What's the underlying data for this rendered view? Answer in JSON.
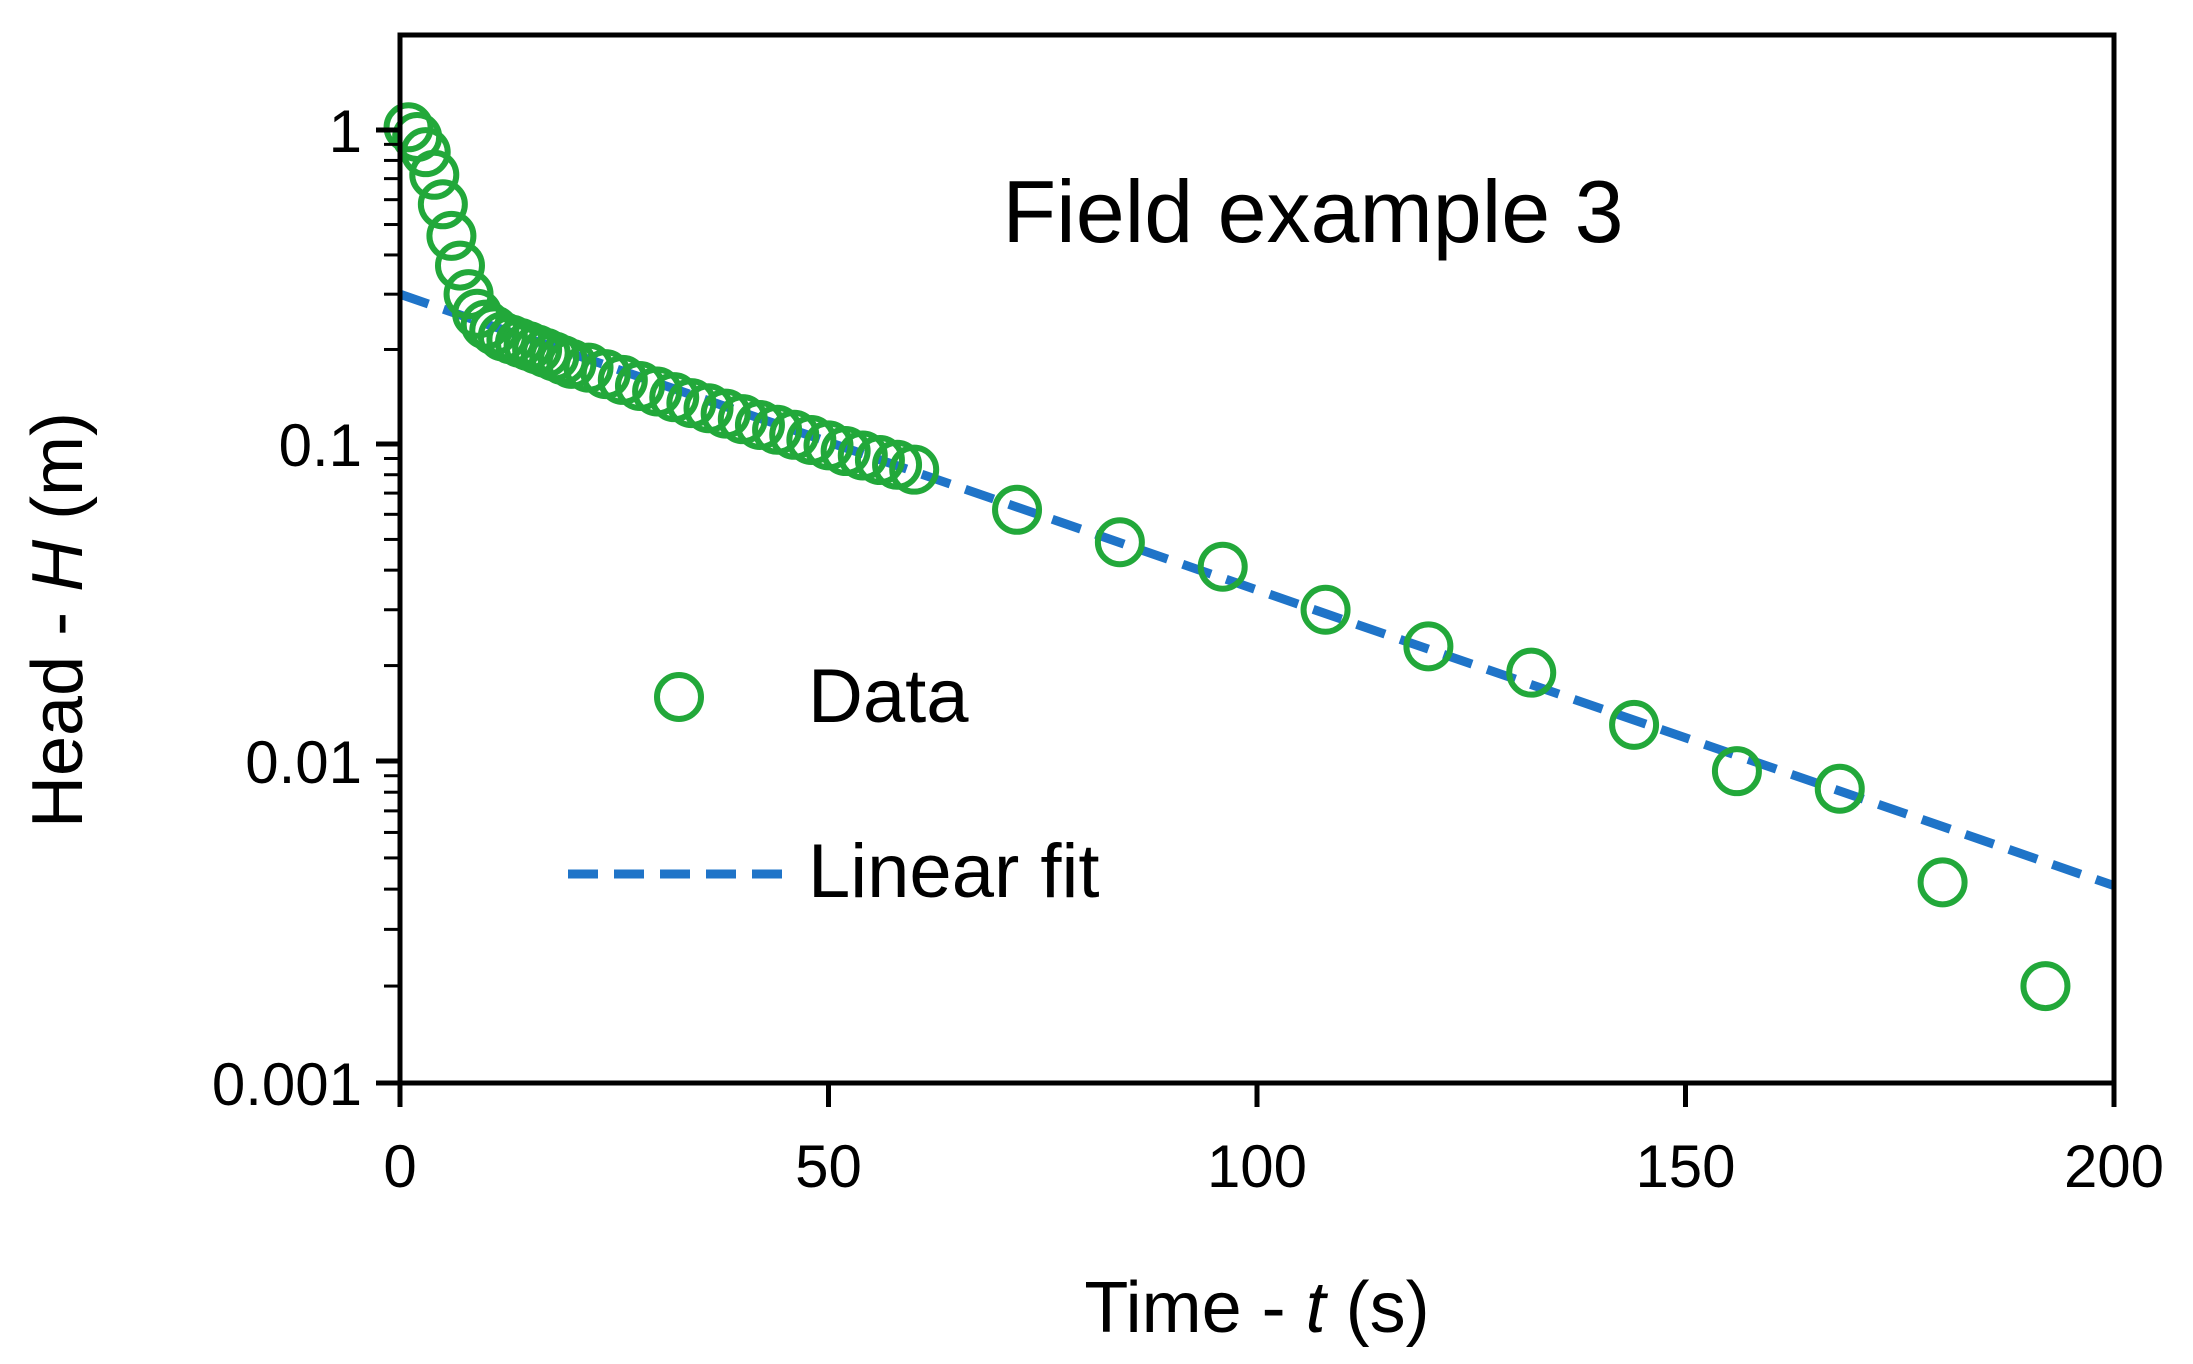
{
  "chart_data": {
    "type": "scatter",
    "title": "Field example 3",
    "xlabel_prefix": "Time - ",
    "xlabel_var": "t",
    "xlabel_unit": " (s)",
    "ylabel_prefix": "Head - ",
    "ylabel_var": "H",
    "ylabel_unit": " (m)",
    "xlim": [
      0,
      200
    ],
    "ylim": [
      0.001,
      2
    ],
    "yscale": "log",
    "x_ticks": [
      0,
      50,
      100,
      150,
      200
    ],
    "x_tick_labels": [
      "0",
      "50",
      "100",
      "150",
      "200"
    ],
    "y_ticks": [
      0.001,
      0.01,
      0.1,
      1
    ],
    "y_tick_labels": [
      "0.001",
      "0.01",
      "0.1",
      "1"
    ],
    "grid": false,
    "legend_position": "center-left",
    "colors": {
      "data": "#22a83a",
      "fit": "#1f74c8",
      "axis": "#000000"
    },
    "series": [
      {
        "name": "Data",
        "kind": "markers",
        "x": [
          1,
          2,
          3,
          4,
          5,
          6,
          7,
          8,
          9,
          10,
          11,
          12,
          13,
          14,
          15,
          16,
          17,
          18,
          19,
          20,
          22,
          24,
          26,
          28,
          30,
          32,
          34,
          36,
          38,
          40,
          42,
          44,
          46,
          48,
          50,
          52,
          54,
          56,
          58,
          60,
          72,
          84,
          96,
          108,
          120,
          132,
          144,
          156,
          168,
          180,
          192
        ],
        "y": [
          1.02,
          0.95,
          0.85,
          0.72,
          0.58,
          0.46,
          0.37,
          0.3,
          0.26,
          0.24,
          0.23,
          0.22,
          0.215,
          0.21,
          0.205,
          0.2,
          0.195,
          0.19,
          0.185,
          0.18,
          0.175,
          0.167,
          0.16,
          0.153,
          0.147,
          0.141,
          0.135,
          0.13,
          0.125,
          0.12,
          0.115,
          0.111,
          0.107,
          0.103,
          0.099,
          0.095,
          0.092,
          0.089,
          0.086,
          0.083,
          0.062,
          0.049,
          0.041,
          0.03,
          0.023,
          0.019,
          0.013,
          0.0093,
          0.0082,
          0.0042,
          0.002
        ]
      },
      {
        "name": "Linear fit",
        "kind": "dashed-line",
        "x": [
          0,
          200
        ],
        "y": [
          0.3,
          0.0041
        ]
      }
    ]
  }
}
